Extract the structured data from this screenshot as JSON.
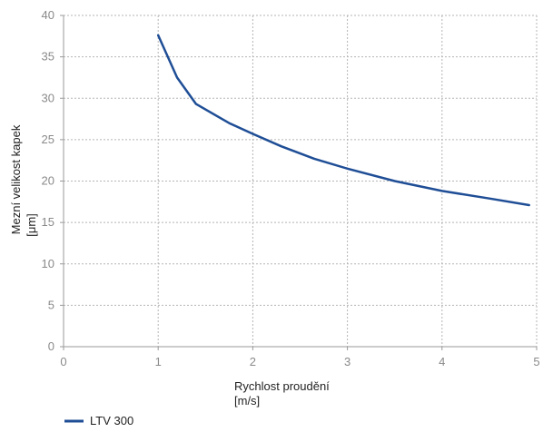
{
  "chart_data": {
    "type": "line",
    "title": "",
    "xlabel": [
      "Rychlost proudění",
      "[m/s]"
    ],
    "ylabel": [
      "Mezní velikost kapek",
      "[μm]"
    ],
    "xlim": [
      0,
      5
    ],
    "ylim": [
      0,
      40
    ],
    "xticks": [
      "0",
      "1",
      "2",
      "3",
      "4",
      "5"
    ],
    "yticks": [
      "0",
      "5",
      "10",
      "15",
      "20",
      "25",
      "30",
      "35",
      "40"
    ],
    "grid": true,
    "legend_position": "bottom-left",
    "series": [
      {
        "name": "LTV 300",
        "color": "#1f4e96",
        "x": [
          1.0,
          1.2,
          1.4,
          1.75,
          2.0,
          2.3,
          2.65,
          3.0,
          3.5,
          4.0,
          4.5,
          4.92
        ],
        "y": [
          37.6,
          32.5,
          29.3,
          27.0,
          25.7,
          24.2,
          22.7,
          21.5,
          20.0,
          18.8,
          17.9,
          17.1
        ]
      }
    ]
  }
}
